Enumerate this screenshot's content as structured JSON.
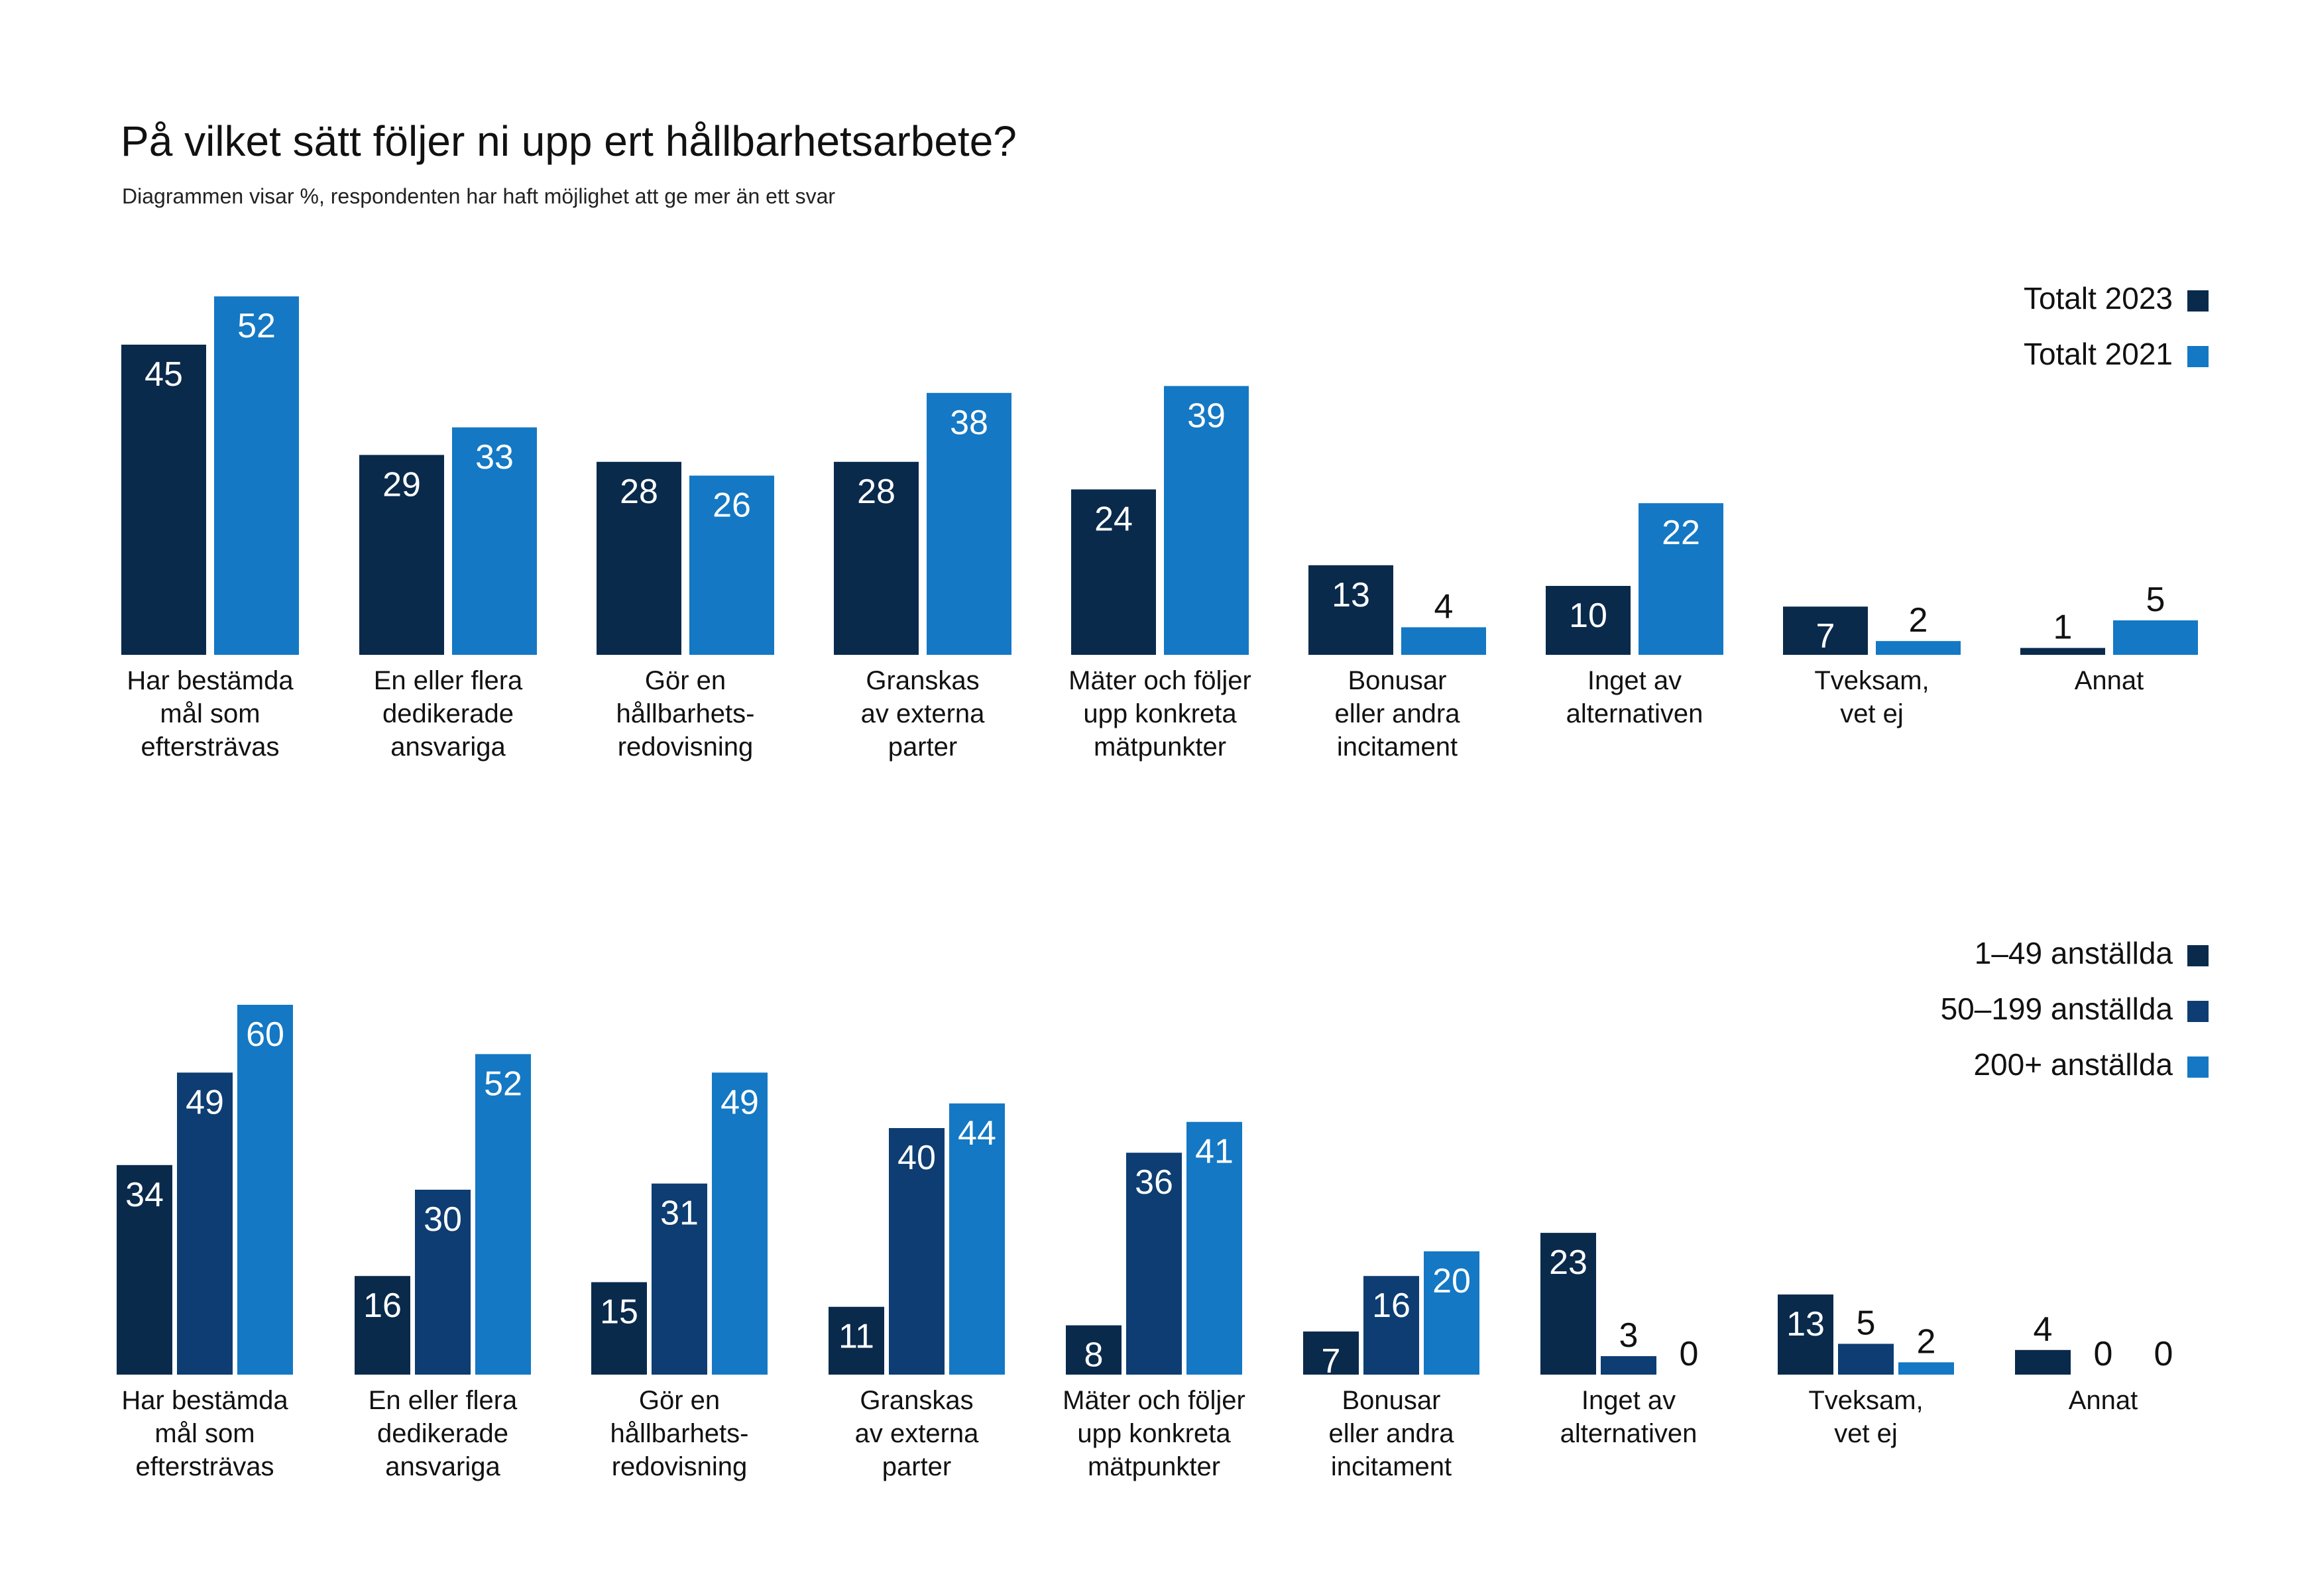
{
  "title": "På vilket sätt följer ni upp ert hållbarhetsarbete?",
  "subtitle": "Diagrammen visar %, respondenten har haft möjlighet att ge mer än ett svar",
  "colors": {
    "dark_navy": "#0a2a4c",
    "mid_navy": "#0d3d72",
    "blue": "#1478c4",
    "label_light": "#ffffff",
    "label_dark": "#111111"
  },
  "chart_data": [
    {
      "type": "bar",
      "categories": [
        [
          "Har bestämda",
          "mål som",
          "eftersträvas"
        ],
        [
          "En eller flera",
          "dedikerade",
          "ansvariga"
        ],
        [
          "Gör en",
          "hållbarhets-",
          "redovisning"
        ],
        [
          "Granskas",
          "av externa",
          "parter"
        ],
        [
          "Mäter och följer",
          "upp konkreta",
          "mätpunkter"
        ],
        [
          "Bonusar",
          "eller andra",
          "incitament"
        ],
        [
          "Inget av",
          "alternativen"
        ],
        [
          "Tveksam,",
          "vet ej"
        ],
        [
          "Annat"
        ]
      ],
      "series": [
        {
          "name": "Totalt 2023",
          "color": "#0a2a4c",
          "values": [
            45,
            29,
            28,
            28,
            24,
            13,
            10,
            7,
            1
          ]
        },
        {
          "name": "Totalt 2021",
          "color": "#1478c4",
          "values": [
            52,
            33,
            26,
            38,
            39,
            4,
            22,
            2,
            5
          ]
        }
      ],
      "legend_position": "top-right",
      "grid": false,
      "ylim": [
        0,
        60
      ]
    },
    {
      "type": "bar",
      "categories": [
        [
          "Har bestämda",
          "mål som",
          "eftersträvas"
        ],
        [
          "En eller flera",
          "dedikerade",
          "ansvariga"
        ],
        [
          "Gör en",
          "hållbarhets-",
          "redovisning"
        ],
        [
          "Granskas",
          "av externa",
          "parter"
        ],
        [
          "Mäter och följer",
          "upp konkreta",
          "mätpunkter"
        ],
        [
          "Bonusar",
          "eller andra",
          "incitament"
        ],
        [
          "Inget av",
          "alternativen"
        ],
        [
          "Tveksam,",
          "vet ej"
        ],
        [
          "Annat"
        ]
      ],
      "series": [
        {
          "name": "1–49 anställda",
          "color": "#0a2a4c",
          "values": [
            34,
            16,
            15,
            11,
            8,
            7,
            23,
            13,
            4
          ]
        },
        {
          "name": "50–199 anställda",
          "color": "#0d3d72",
          "values": [
            49,
            30,
            31,
            40,
            36,
            16,
            3,
            5,
            0
          ]
        },
        {
          "name": "200+ anställda",
          "color": "#1478c4",
          "values": [
            60,
            52,
            49,
            44,
            41,
            20,
            0,
            2,
            0
          ]
        }
      ],
      "legend_position": "top-right",
      "grid": false,
      "ylim": [
        0,
        60
      ]
    }
  ]
}
